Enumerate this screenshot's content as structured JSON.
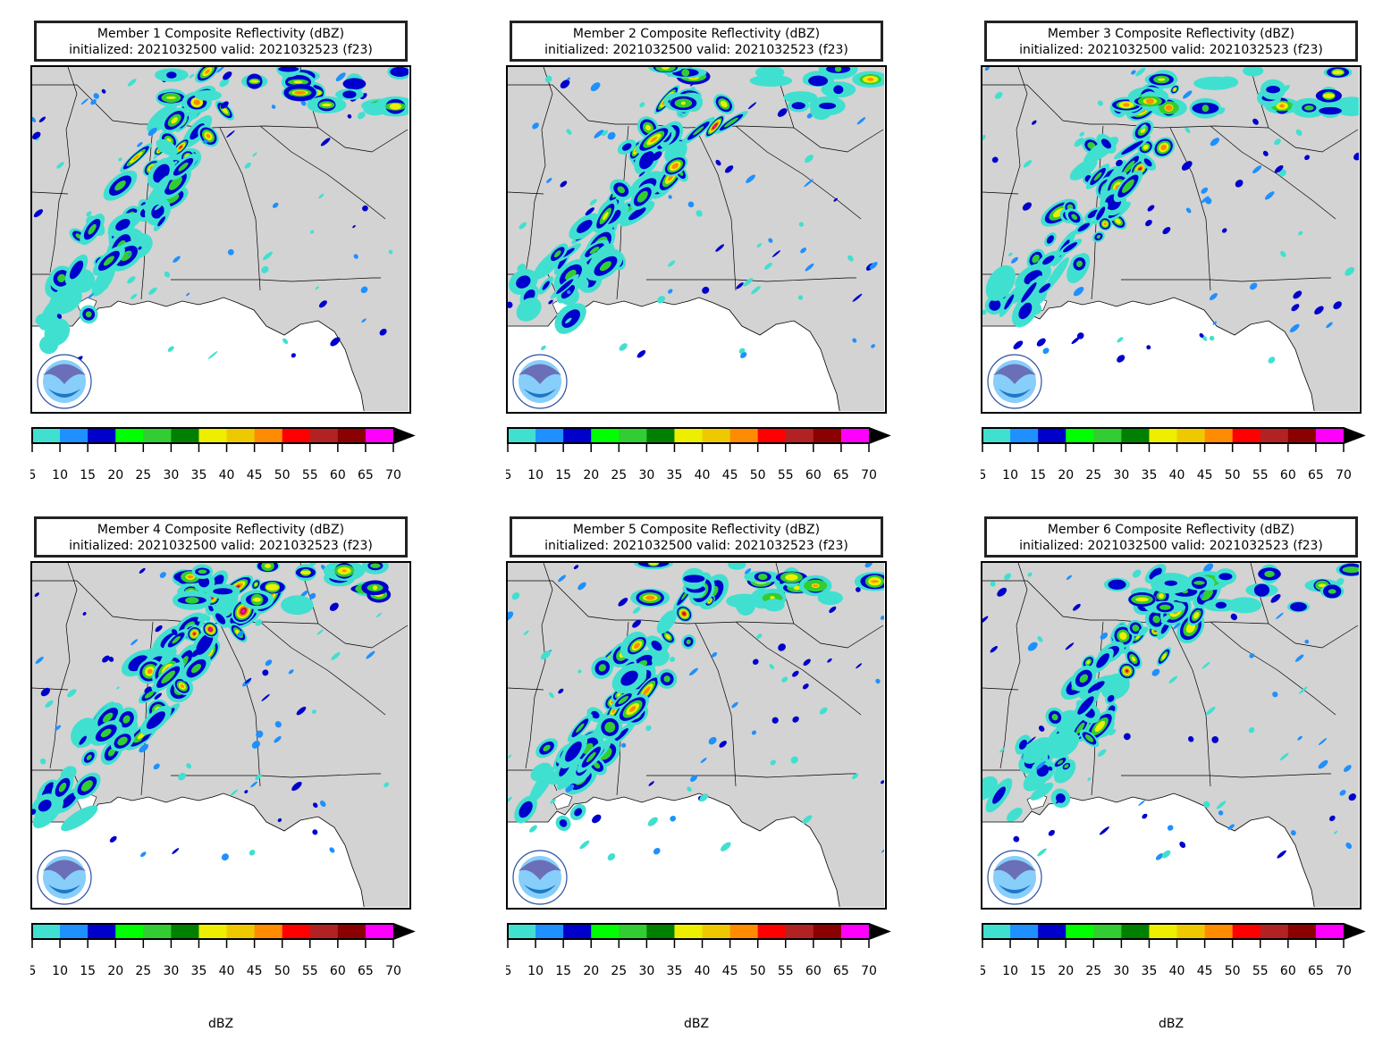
{
  "panels": [
    {
      "title": "Member 1 Composite Reflectivity (dBZ)",
      "subtitle": "initialized: 2021032500 valid: 2021032523 (f23)",
      "colorbar_label": ""
    },
    {
      "title": "Member 2 Composite Reflectivity (dBZ)",
      "subtitle": "initialized: 2021032500 valid: 2021032523 (f23)",
      "colorbar_label": ""
    },
    {
      "title": "Member 3 Composite Reflectivity (dBZ)",
      "subtitle": "initialized: 2021032500 valid: 2021032523 (f23)",
      "colorbar_label": ""
    },
    {
      "title": "Member 4 Composite Reflectivity (dBZ)",
      "subtitle": "initialized: 2021032500 valid: 2021032523 (f23)",
      "colorbar_label": "dBZ"
    },
    {
      "title": "Member 5 Composite Reflectivity (dBZ)",
      "subtitle": "initialized: 2021032500 valid: 2021032523 (f23)",
      "colorbar_label": "dBZ"
    },
    {
      "title": "Member 6 Composite Reflectivity (dBZ)",
      "subtitle": "initialized: 2021032500 valid: 2021032523 (f23)",
      "colorbar_label": "dBZ"
    }
  ],
  "colorbar": {
    "ticks": [
      "5",
      "10",
      "15",
      "20",
      "25",
      "30",
      "35",
      "40",
      "45",
      "50",
      "55",
      "60",
      "65",
      "70"
    ],
    "colors": [
      "#40e0d0",
      "#1e90ff",
      "#0000cd",
      "#00ff00",
      "#32cd32",
      "#008000",
      "#eeee00",
      "#eec900",
      "#ff8c00",
      "#ff0000",
      "#b22222",
      "#8b0000",
      "#ff00ff"
    ],
    "extend_color": "#000000"
  },
  "map": {
    "land_color": "#d3d3d3",
    "water_color": "#ffffff",
    "logo": "noaa-logo"
  }
}
